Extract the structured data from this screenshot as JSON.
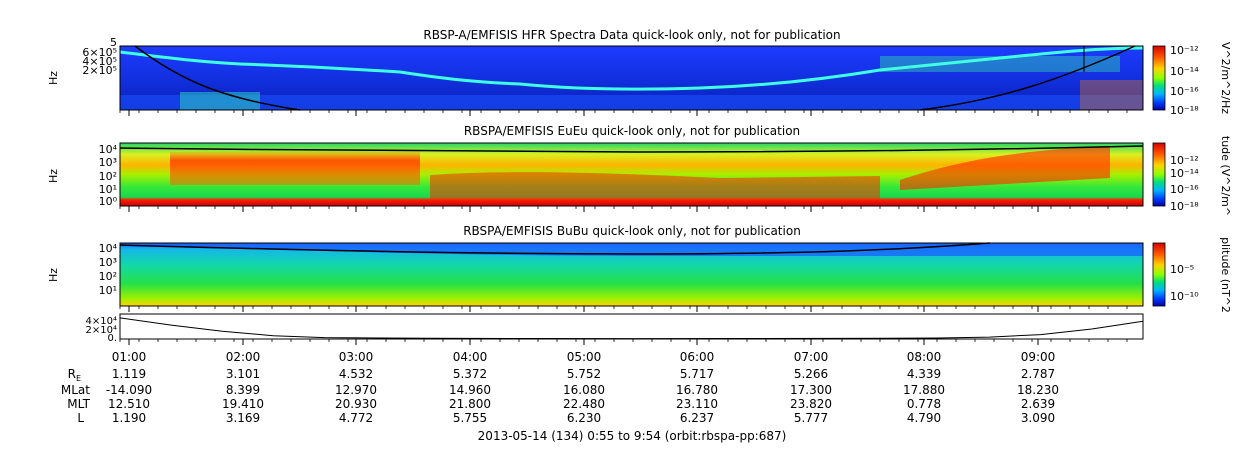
{
  "chart_data": [
    {
      "type": "heatmap",
      "title": "RBSP-A/EMFISIS  HFR Spectra Data quick-look only, not for publication",
      "ylabel": "Hz",
      "y_ticks": [
        "2×10⁵",
        "4×10⁵",
        "6×10⁵"
      ],
      "y_top_label": "5",
      "colorbar_label": "V^2/m^2/Hz",
      "colorbar_ticks": [
        "10⁻¹²",
        "10⁻¹⁴",
        "10⁻¹⁶",
        "10⁻¹⁸"
      ]
    },
    {
      "type": "heatmap",
      "title": "RBSPA/EMFISIS  EuEu quick-look only, not for publication",
      "ylabel": "Hz",
      "y_ticks": [
        "10⁴",
        "10³",
        "10²",
        "10¹",
        "10⁰"
      ],
      "colorbar_label": "tude (V^2/m^",
      "colorbar_ticks": [
        "10⁻¹²",
        "10⁻¹⁴",
        "10⁻¹⁶",
        "10⁻¹⁸"
      ]
    },
    {
      "type": "heatmap",
      "title": "RBSPA/EMFISIS  BuBu quick-look only, not for publication",
      "ylabel": "Hz",
      "y_ticks": [
        "10⁴",
        "10³",
        "10²",
        "10¹"
      ],
      "colorbar_label": "plitude (nT^2",
      "colorbar_ticks": [
        "10⁻⁵",
        "10⁻¹⁰"
      ]
    },
    {
      "type": "line",
      "y_ticks": [
        "4×10⁴",
        "2×10⁴",
        "0."
      ],
      "ylim": [
        0,
        45000
      ],
      "x": [
        0,
        0.05,
        0.1,
        0.15,
        0.2,
        0.3,
        0.4,
        0.5,
        0.6,
        0.7,
        0.8,
        0.85,
        0.9,
        0.95,
        1.0
      ],
      "y": [
        38000,
        25000,
        14000,
        6000,
        2500,
        1200,
        900,
        800,
        900,
        1100,
        1800,
        3500,
        8000,
        18000,
        32000
      ]
    }
  ],
  "time_axis": {
    "ticks": [
      "01:00",
      "02:00",
      "03:00",
      "04:00",
      "05:00",
      "06:00",
      "07:00",
      "08:00",
      "09:00"
    ]
  },
  "ephemeris": {
    "rows": [
      {
        "label": "R",
        "sub": "E",
        "values": [
          "1.119",
          "3.101",
          "4.532",
          "5.372",
          "5.752",
          "5.717",
          "5.266",
          "4.339",
          "2.787"
        ]
      },
      {
        "label": "MLat",
        "sub": "",
        "values": [
          "-14.090",
          "8.399",
          "12.970",
          "14.960",
          "16.080",
          "16.780",
          "17.300",
          "17.880",
          "18.230"
        ]
      },
      {
        "label": "MLT",
        "sub": "",
        "values": [
          "12.510",
          "19.410",
          "20.930",
          "21.800",
          "22.480",
          "23.110",
          "23.820",
          "0.778",
          "2.639"
        ]
      },
      {
        "label": "L",
        "sub": "",
        "values": [
          "1.190",
          "3.169",
          "4.772",
          "5.755",
          "6.230",
          "6.237",
          "5.777",
          "4.790",
          "3.090"
        ]
      }
    ]
  },
  "footer": "2013-05-14 (134) 0:55 to 9:54 (orbit:rbspa-pp:687)"
}
